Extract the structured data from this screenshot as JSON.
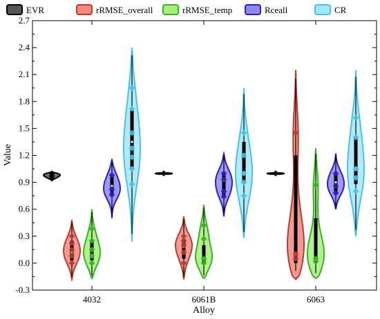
{
  "chart_data": {
    "type": "violin",
    "xlabel": "Alloy",
    "ylabel": "Value",
    "ylim": [
      -0.3,
      2.7
    ],
    "yticks": [
      "-0.3",
      "0.0",
      "0.3",
      "0.6",
      "0.9",
      "1.2",
      "1.5",
      "1.8",
      "2.1",
      "2.4",
      "2.7"
    ],
    "categories": [
      "4032",
      "6061B",
      "6063"
    ],
    "grid": false,
    "legend_position": "top",
    "series": [
      {
        "name": "EVR",
        "fill": "#555555",
        "edge": "#000000",
        "groups": [
          {
            "min": 0.93,
            "q1": 0.97,
            "median": 0.99,
            "q3": 1.0,
            "max": 1.01,
            "points": [
              0.94,
              0.97,
              1.0
            ]
          },
          {
            "min": 0.99,
            "q1": 0.995,
            "median": 1.0,
            "q3": 1.0,
            "max": 1.005,
            "points": [
              1.0
            ]
          },
          {
            "min": 0.99,
            "q1": 0.995,
            "median": 1.0,
            "q3": 1.0,
            "max": 1.005,
            "points": [
              1.0
            ]
          }
        ]
      },
      {
        "name": "rRMSE_overall",
        "fill": "#f08a80",
        "edge": "#c0392b",
        "groups": [
          {
            "min": -0.18,
            "q1": 0.03,
            "median": 0.12,
            "q3": 0.25,
            "max": 0.48,
            "points": [
              0.0,
              0.08,
              0.15,
              0.22,
              0.3
            ]
          },
          {
            "min": -0.18,
            "q1": 0.05,
            "median": 0.18,
            "q3": 0.27,
            "max": 0.52,
            "points": [
              0.0,
              0.12,
              0.2,
              0.25,
              0.3
            ]
          },
          {
            "min": -0.18,
            "q1": 0.0,
            "median": 0.1,
            "q3": 1.2,
            "max": 2.15,
            "points": [
              0.05,
              0.1,
              1.45
            ]
          }
        ]
      },
      {
        "name": "rRMSE_temp",
        "fill": "#a5ef7d",
        "edge": "#38b322",
        "groups": [
          {
            "min": -0.17,
            "q1": 0.03,
            "median": 0.08,
            "q3": 0.25,
            "max": 0.6,
            "points": [
              0.0,
              0.08,
              0.15,
              0.25,
              0.38
            ]
          },
          {
            "min": -0.17,
            "q1": 0.0,
            "median": 0.05,
            "q3": 0.2,
            "max": 0.65,
            "points": [
              0.0,
              0.05,
              0.27,
              0.42
            ]
          },
          {
            "min": -0.17,
            "q1": 0.0,
            "median": 0.05,
            "q3": 0.5,
            "max": 1.28,
            "points": [
              0.02,
              0.05,
              0.87
            ]
          }
        ]
      },
      {
        "name": "Rceall",
        "fill": "#8d87f0",
        "edge": "#2d1fc6",
        "groups": [
          {
            "min": 0.5,
            "q1": 0.76,
            "median": 0.86,
            "q3": 0.98,
            "max": 1.15,
            "points": [
              0.76,
              0.82,
              0.98
            ]
          },
          {
            "min": 0.52,
            "q1": 0.74,
            "median": 0.92,
            "q3": 1.0,
            "max": 1.22,
            "points": [
              0.74,
              0.8,
              0.93,
              1.0
            ]
          },
          {
            "min": 0.6,
            "q1": 0.78,
            "median": 0.9,
            "q3": 1.0,
            "max": 1.22,
            "points": [
              0.78,
              0.86,
              1.0
            ]
          }
        ]
      },
      {
        "name": "CR",
        "fill": "#a3e8fa",
        "edge": "#47c3ea",
        "groups": [
          {
            "min": 0.24,
            "q1": 1.05,
            "median": 1.35,
            "q3": 1.7,
            "max": 2.4,
            "points": [
              0.88,
              1.05,
              1.18,
              1.28,
              1.45,
              1.72,
              1.95
            ]
          },
          {
            "min": 0.28,
            "q1": 0.9,
            "median": 1.0,
            "q3": 1.35,
            "max": 1.95,
            "points": [
              0.75,
              0.9,
              1.0,
              1.2,
              1.45
            ]
          },
          {
            "min": 0.3,
            "q1": 0.88,
            "median": 1.05,
            "q3": 1.4,
            "max": 2.15,
            "points": [
              0.8,
              0.95,
              1.05,
              1.4,
              1.62
            ]
          }
        ]
      }
    ]
  }
}
